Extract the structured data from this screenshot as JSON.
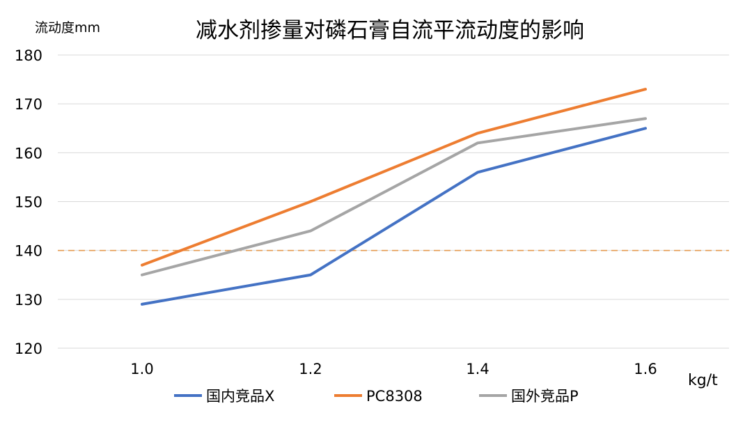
{
  "chart_data": {
    "type": "line",
    "title": "减水剂掺量对磷石膏自流平流动度的影响",
    "ylabel": "流动度mm",
    "xlabel": "kg/t",
    "categories": [
      "1.0",
      "1.2",
      "1.4",
      "1.6"
    ],
    "ylim": [
      120,
      180
    ],
    "yticks": [
      "120",
      "130",
      "140",
      "150",
      "160",
      "170",
      "180"
    ],
    "grid": true,
    "legend_position": "bottom",
    "reference_line": {
      "value": 140,
      "color": "#e59a4f",
      "style": "dashed"
    },
    "series": [
      {
        "name": "国内竞品X",
        "values": [
          129,
          135,
          156,
          165
        ],
        "color": "#4472c4"
      },
      {
        "name": "PC8308",
        "values": [
          137,
          150,
          164,
          173
        ],
        "color": "#ed7d31"
      },
      {
        "name": "国外竞品P",
        "values": [
          135,
          144,
          162,
          167
        ],
        "color": "#a5a5a5"
      }
    ]
  }
}
